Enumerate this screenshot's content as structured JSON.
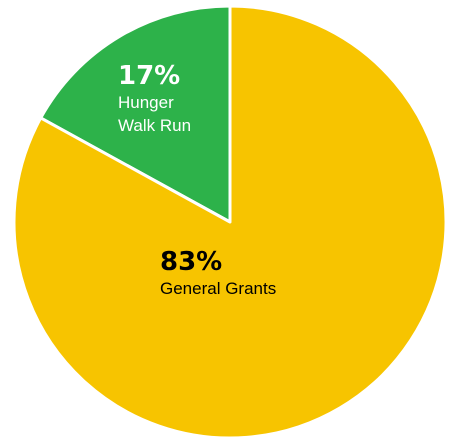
{
  "chart_data": {
    "type": "pie",
    "title": "",
    "slices": [
      {
        "label_lines": [
          "Hunger",
          "Walk Run"
        ],
        "value": 17,
        "percent_text": "17%",
        "color": "#2db24a",
        "text_color": "#ffffff"
      },
      {
        "label_lines": [
          "General Grants"
        ],
        "value": 83,
        "percent_text": "83%",
        "color": "#f7c400",
        "text_color": "#000000"
      }
    ],
    "start_angle_deg": 0,
    "direction": "counterclockwise_from_top",
    "separator_color": "#ffffff"
  }
}
